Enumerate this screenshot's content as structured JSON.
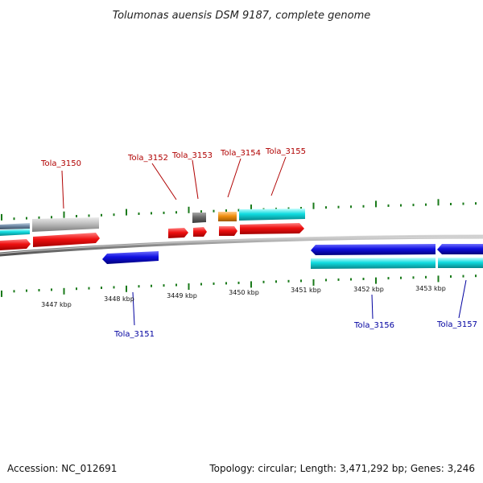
{
  "title": "Tolumonas auensis DSM 9187, complete genome",
  "footer": {
    "accession": "Accession: NC_012691",
    "summary": "Topology: circular; Length: 3,471,292 bp; Genes: 3,246"
  },
  "scale_labels": [
    "3447 kbp",
    "3448 kbp",
    "3449 kbp",
    "3450 kbp",
    "3451 kbp",
    "3452 kbp",
    "3453 kbp"
  ],
  "gene_labels_top": [
    "Tola_3150",
    "Tola_3152",
    "Tola_3153",
    "Tola_3154",
    "Tola_3155"
  ],
  "gene_labels_bottom": [
    "Tola_3151",
    "Tola_3156",
    "Tola_3157"
  ],
  "colors": {
    "red": "#e81010",
    "blue": "#1010e0",
    "cyan": "#10d8e0",
    "gray": "#b8b8b8",
    "darkgray": "#707070",
    "orange": "#f09010",
    "tick": "#1a7a1a",
    "label_top": "#b00000",
    "label_bottom": "#0000a0"
  }
}
